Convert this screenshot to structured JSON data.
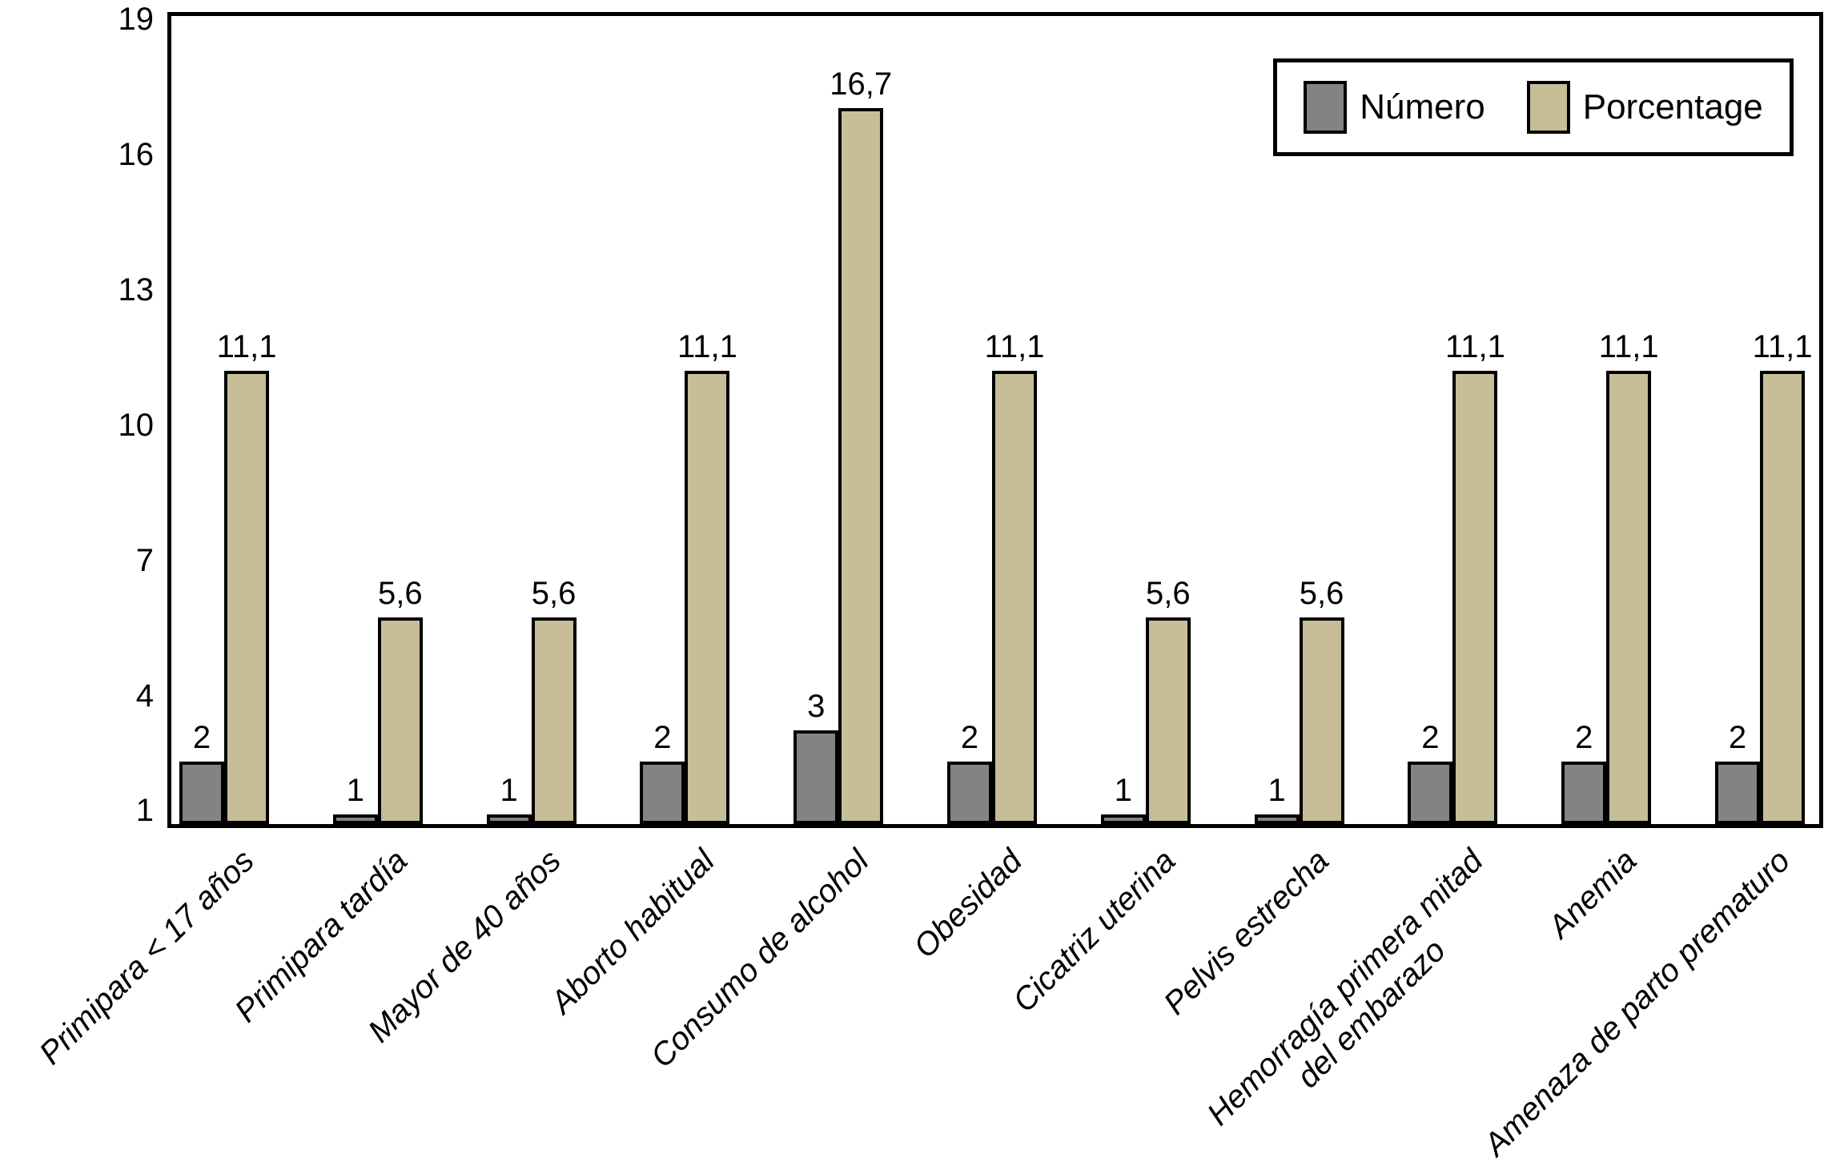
{
  "chart_data": {
    "type": "bar",
    "title": "",
    "categories": [
      "Primipara < 17 años",
      "Primipara tardía",
      "Mayor de 40 años",
      "Aborto habitual",
      "Consumo de alcohol",
      "Obesidad",
      "Cicatriz uterina",
      "Pelvis estrecha",
      "Hemorragía primera mitad\ndel embarazo",
      "Anemia",
      "Amenaza de parto prematuro"
    ],
    "series": [
      {
        "name": "Número",
        "color": "#838383",
        "values": [
          2,
          1,
          1,
          2,
          3,
          2,
          1,
          1,
          2,
          2,
          2
        ],
        "labels": [
          "2",
          "1",
          "1",
          "2",
          "3",
          "2",
          "1",
          "1",
          "2",
          "2",
          "2"
        ]
      },
      {
        "name": "Porcentage",
        "color": "#c7be97",
        "values": [
          11.1,
          5.6,
          5.6,
          11.1,
          16.7,
          11.1,
          5.6,
          5.6,
          11.1,
          11.1,
          11.1
        ],
        "labels": [
          "11,1",
          "5,6",
          "5,6",
          "11,1",
          "16,7",
          "11,1",
          "5,6",
          "5,6",
          "11,1",
          "11,1",
          "11,1"
        ]
      }
    ],
    "y_axis": {
      "min": 1,
      "max": 19,
      "ticks": [
        1,
        4,
        7,
        10,
        13,
        16,
        19
      ]
    },
    "legend_position": "top-right",
    "grid": false,
    "bar_border_color": "#000000",
    "background_color": "#ffffff"
  }
}
